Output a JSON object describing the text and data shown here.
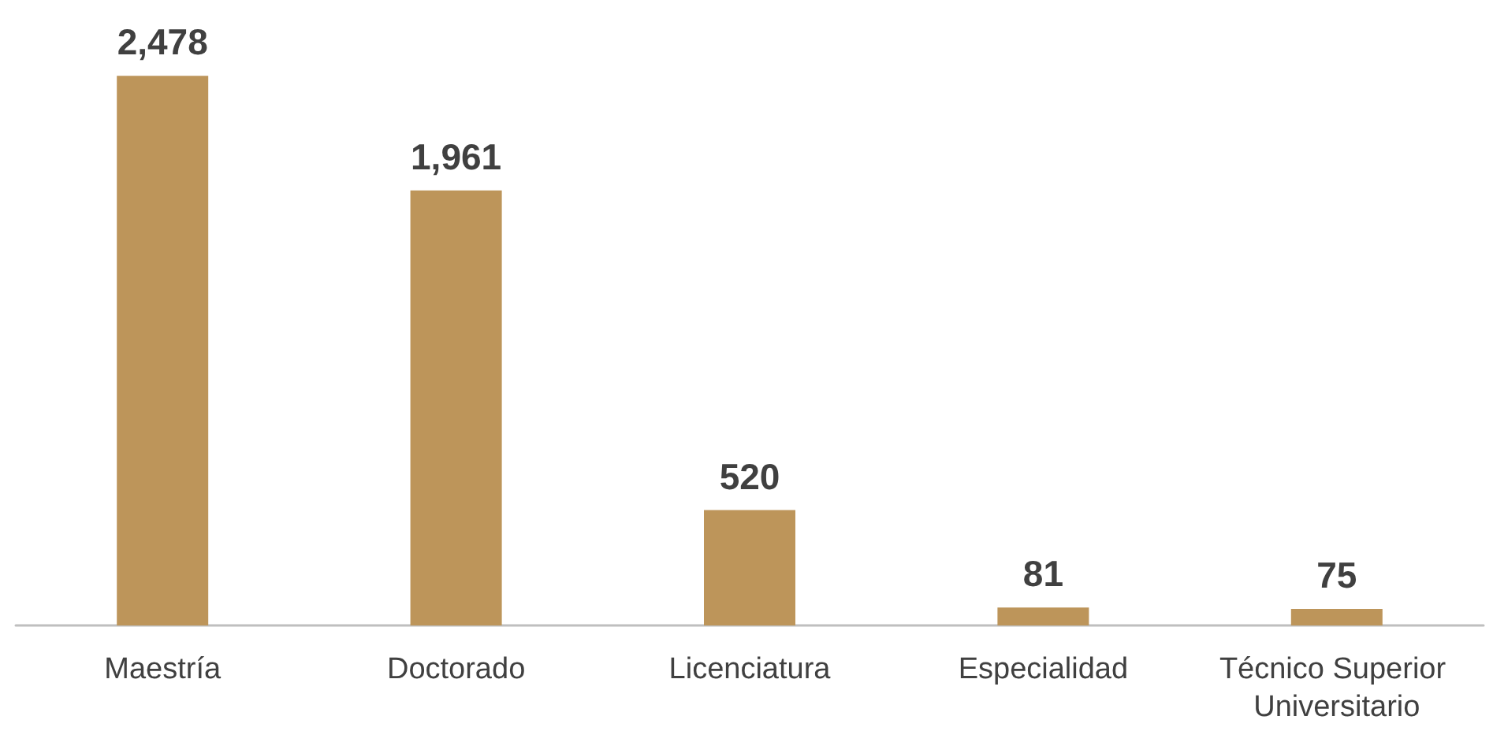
{
  "chart_data": {
    "type": "bar",
    "categories": [
      "Maestría",
      "Doctorado",
      "Licenciatura",
      "Especialidad",
      "Técnico Superior Universitario"
    ],
    "values": [
      2478,
      1961,
      520,
      81,
      75
    ],
    "value_labels": [
      "2,478",
      "1,961",
      "520",
      "81",
      "75"
    ],
    "color": "#bd955a"
  }
}
